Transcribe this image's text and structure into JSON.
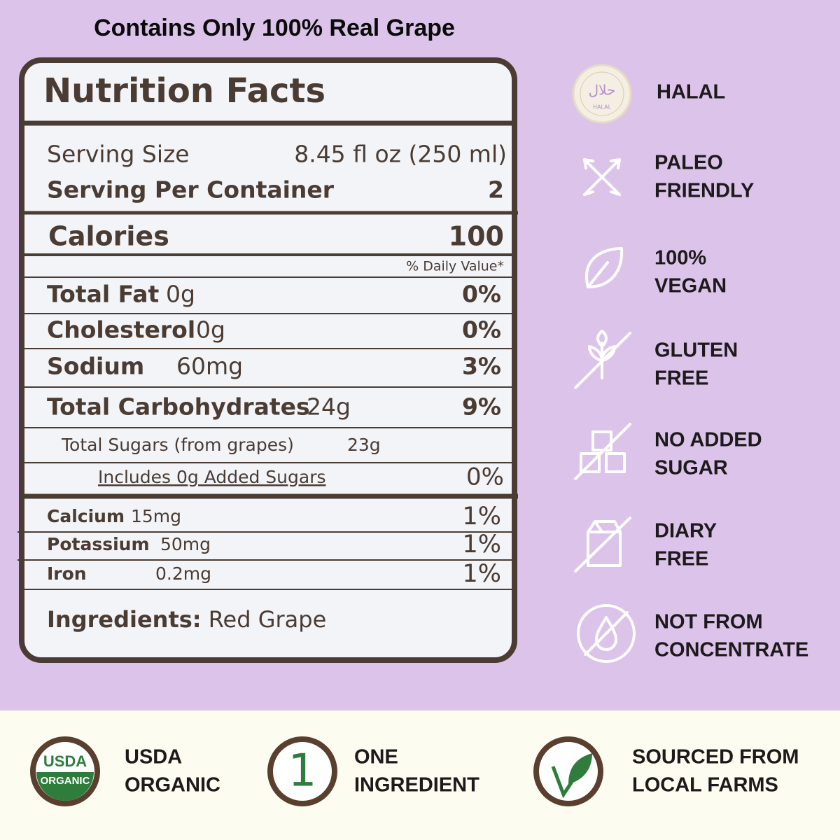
{
  "heading": "Contains Only 100% Real Grape",
  "nutrition": {
    "title": "Nutrition Facts",
    "serving_size": {
      "label": "Serving Size",
      "value": "8.45 fl oz (250 ml)"
    },
    "servings_per_container": {
      "label": "Serving Per Container",
      "value": "2"
    },
    "calories": {
      "label": "Calories",
      "value": "100"
    },
    "daily_value_header": "% Daily Value*",
    "rows": [
      {
        "label": "Total Fat",
        "amount": "0g",
        "dv": "0%"
      },
      {
        "label": "Cholesterol",
        "amount": "0g",
        "dv": "0%"
      },
      {
        "label": "Sodium",
        "amount": "60mg",
        "dv": "3%"
      },
      {
        "label": "Total Carbohydrates",
        "amount": "24g",
        "dv": "9%"
      }
    ],
    "total_sugars": {
      "label": "Total Sugars (from grapes)",
      "amount": "23g"
    },
    "added_sugars": {
      "label": "Includes 0g Added Sugars",
      "dv": "0%"
    },
    "minerals": [
      {
        "label": "Calcium",
        "amount": "15mg",
        "dv": "1%"
      },
      {
        "label": "Potassium",
        "amount": "50mg",
        "dv": "1%"
      },
      {
        "label": "Iron",
        "amount": "0.2mg",
        "dv": "1%"
      }
    ],
    "ingredients": {
      "label": "Ingredients:",
      "value": "Red Grape"
    }
  },
  "badges": [
    {
      "seal": "حلال",
      "seal_caption": "HALAL",
      "lines": [
        "HALAL"
      ]
    },
    {
      "lines": [
        "PALEO",
        "FRIENDLY"
      ]
    },
    {
      "lines": [
        "100%",
        "VEGAN"
      ]
    },
    {
      "lines": [
        "GLUTEN",
        "FREE"
      ]
    },
    {
      "lines": [
        "NO ADDED",
        "SUGAR"
      ]
    },
    {
      "lines": [
        "DIARY",
        "FREE"
      ]
    },
    {
      "lines": [
        "NOT FROM",
        "CONCENTRATE"
      ]
    }
  ],
  "features": [
    {
      "icon_text": [
        "USDA",
        "ORGANIC"
      ],
      "lines": [
        "USDA",
        "ORGANIC"
      ]
    },
    {
      "icon_text": [
        "1"
      ],
      "lines": [
        "ONE",
        "INGREDIENT"
      ]
    },
    {
      "lines": [
        "SOURCED FROM",
        "LOCAL FARMS"
      ]
    }
  ]
}
